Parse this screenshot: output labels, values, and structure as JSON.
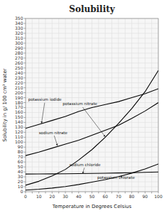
{
  "chart_data": {
    "type": "line",
    "title": "Solubility",
    "x_label": "Temperature in Degrees Celsius",
    "y_label": "Solubility in g/ 100 cm³ water",
    "color": "#000000",
    "grid": true,
    "xlim": [
      0,
      100
    ],
    "ylim": [
      0,
      350
    ],
    "xticks": [
      0,
      {
        "value": 5,
        "label": null
      },
      10,
      {
        "value": 15,
        "label": null
      },
      20,
      {
        "value": 25,
        "label": null
      },
      30,
      {
        "value": 35,
        "label": null
      },
      40,
      {
        "value": 45,
        "label": null
      },
      50,
      {
        "value": 55,
        "label": null
      },
      60,
      {
        "value": 65,
        "label": null
      },
      70,
      {
        "value": 75,
        "label": null
      },
      80,
      {
        "value": 85,
        "label": null
      },
      90,
      {
        "value": 95,
        "label": null
      },
      100
    ],
    "yticks": [
      0,
      10,
      20,
      30,
      40,
      50,
      60,
      70,
      80,
      90,
      100,
      110,
      120,
      130,
      140,
      150,
      160,
      170,
      180,
      190,
      200,
      210,
      220,
      230,
      240,
      250,
      260,
      270,
      280,
      290,
      300,
      310,
      320,
      330,
      340,
      350
    ],
    "x": [
      0,
      10,
      20,
      30,
      40,
      50,
      60,
      70,
      80,
      90,
      100
    ],
    "series": [
      {
        "values": [
          128,
          136,
          144,
          152,
          162,
          170,
          176,
          182,
          190,
          198,
          208
        ]
      },
      {
        "values": [
          13,
          21,
          32,
          45,
          64,
          85,
          110,
          138,
          168,
          202,
          245
        ]
      },
      {
        "values": [
          73,
          80,
          88,
          96,
          104,
          114,
          124,
          134,
          148,
          163,
          180
        ]
      },
      {
        "values": [
          35.7,
          35.8,
          36,
          36.3,
          36.6,
          37,
          37.3,
          37.8,
          38.4,
          39,
          39.8
        ]
      },
      {
        "values": [
          3.3,
          5,
          7.4,
          10.5,
          14.5,
          19.3,
          24.5,
          30.5,
          37.5,
          46,
          56
        ]
      }
    ],
    "annotations": [
      {
        "text": "potassium iodide",
        "text_x": 2,
        "text_y": 187,
        "x": 12,
        "y": 138
      },
      {
        "text": "potassium nitrate",
        "text_x": 28,
        "text_y": 178,
        "x": 60,
        "y": 111
      },
      {
        "text": "sodium nitrate",
        "text_x": 10,
        "text_y": 119,
        "x": 24,
        "y": 93
      },
      {
        "text": "sodium chloride",
        "text_x": 33,
        "text_y": 54,
        "x": 43,
        "y": 36.8
      },
      {
        "text": "potassium chlorate",
        "text_x": 54,
        "text_y": 28,
        "x": 73,
        "y": 30
      }
    ]
  }
}
